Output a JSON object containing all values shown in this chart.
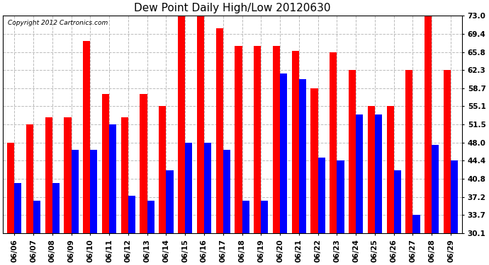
{
  "title": "Dew Point Daily High/Low 20120630",
  "copyright": "Copyright 2012 Cartronics.com",
  "dates": [
    "06/06",
    "06/07",
    "06/08",
    "06/09",
    "06/10",
    "06/11",
    "06/12",
    "06/13",
    "06/14",
    "06/15",
    "06/16",
    "06/17",
    "06/18",
    "06/19",
    "06/20",
    "06/21",
    "06/22",
    "06/23",
    "06/24",
    "06/25",
    "06/26",
    "06/27",
    "06/28",
    "06/29"
  ],
  "highs": [
    48.0,
    51.5,
    53.0,
    53.0,
    68.0,
    57.5,
    53.0,
    57.5,
    55.1,
    73.0,
    73.0,
    70.5,
    67.0,
    67.0,
    67.0,
    66.0,
    58.7,
    65.8,
    62.3,
    55.1,
    55.1,
    62.3,
    73.0,
    62.3
  ],
  "lows": [
    40.0,
    36.5,
    40.0,
    46.5,
    46.5,
    51.5,
    37.5,
    36.5,
    42.5,
    48.0,
    48.0,
    46.5,
    36.5,
    36.5,
    61.5,
    60.5,
    45.0,
    44.4,
    53.5,
    53.5,
    42.5,
    33.7,
    47.5,
    44.4
  ],
  "high_color": "#ff0000",
  "low_color": "#0000ff",
  "bar_width": 0.38,
  "ymin": 30.1,
  "ymax": 73.0,
  "yticks": [
    30.1,
    33.7,
    37.2,
    40.8,
    44.4,
    48.0,
    51.5,
    55.1,
    58.7,
    62.3,
    65.8,
    69.4,
    73.0
  ],
  "background_color": "#ffffff",
  "grid_color": "#bbbbbb",
  "title_fontsize": 11,
  "tick_fontsize": 7.5,
  "copyright_fontsize": 6.5
}
